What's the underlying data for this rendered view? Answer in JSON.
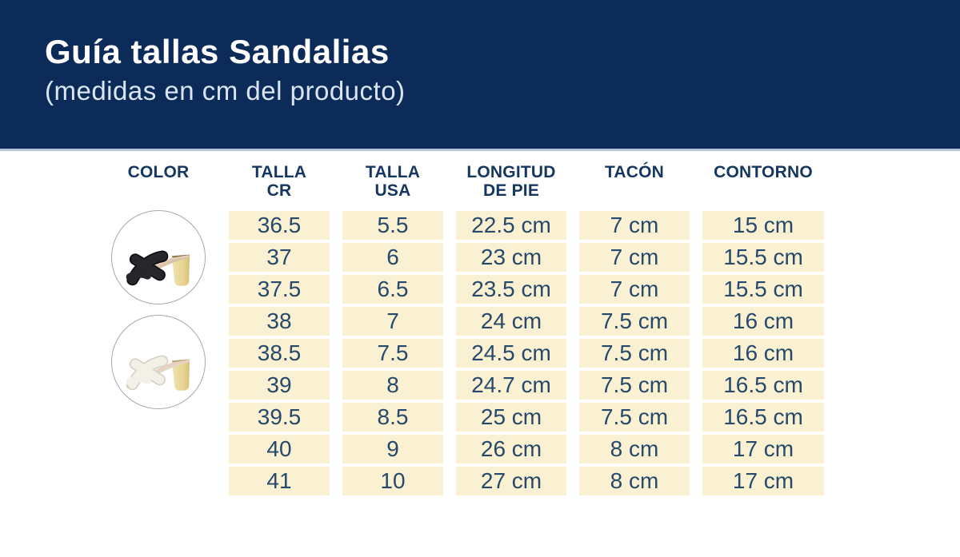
{
  "colors": {
    "page_bg": "#ffffff",
    "band_bg": "#0d2b59",
    "band_divider": "#b7c6d7",
    "title_color": "#ffffff",
    "subtitle_color": "#d9e6f2",
    "header_text": "#14365f",
    "cell_bg": "#faf0d2",
    "cell_text": "#27496c",
    "heel_gold_light": "#f0e3ae",
    "heel_gold_dark": "#d8bf74",
    "sole_tan": "#d8c2a8",
    "insole_pink": "#ecccbc",
    "sandal1_strap": "#26262b",
    "sandal1_strap_edge": "#0e0e10",
    "sandal2_strap": "#f3f0e8",
    "sandal2_strap_edge": "#d6d2c6"
  },
  "header": {
    "title": "Guía tallas Sandalias",
    "subtitle": "(medidas en cm del producto)"
  },
  "table": {
    "columns": [
      {
        "line1": "COLOR",
        "line2": ""
      },
      {
        "line1": "TALLA",
        "line2": "CR"
      },
      {
        "line1": "TALLA",
        "line2": "USA"
      },
      {
        "line1": "LONGITUD",
        "line2": "DE PIE"
      },
      {
        "line1": "TACÓN",
        "line2": ""
      },
      {
        "line1": "CONTORNO",
        "line2": ""
      }
    ],
    "rows": [
      [
        "36.5",
        "5.5",
        "22.5 cm",
        "7 cm",
        "15 cm"
      ],
      [
        "37",
        "6",
        "23 cm",
        "7 cm",
        "15.5 cm"
      ],
      [
        "37.5",
        "6.5",
        "23.5 cm",
        "7 cm",
        "15.5 cm"
      ],
      [
        "38",
        "7",
        "24 cm",
        "7.5 cm",
        "16 cm"
      ],
      [
        "38.5",
        "7.5",
        "24.5 cm",
        "7.5 cm",
        "16 cm"
      ],
      [
        "39",
        "8",
        "24.7 cm",
        "7.5 cm",
        "16.5 cm"
      ],
      [
        "39.5",
        "8.5",
        "25 cm",
        "7.5 cm",
        "16.5 cm"
      ],
      [
        "40",
        "9",
        "26 cm",
        "8 cm",
        "17 cm"
      ],
      [
        "41",
        "10",
        "27 cm",
        "8 cm",
        "17 cm"
      ]
    ],
    "products": [
      {
        "icon": "black-heeled-sandal-photo"
      },
      {
        "icon": "white-heeled-sandal-photo"
      }
    ]
  }
}
